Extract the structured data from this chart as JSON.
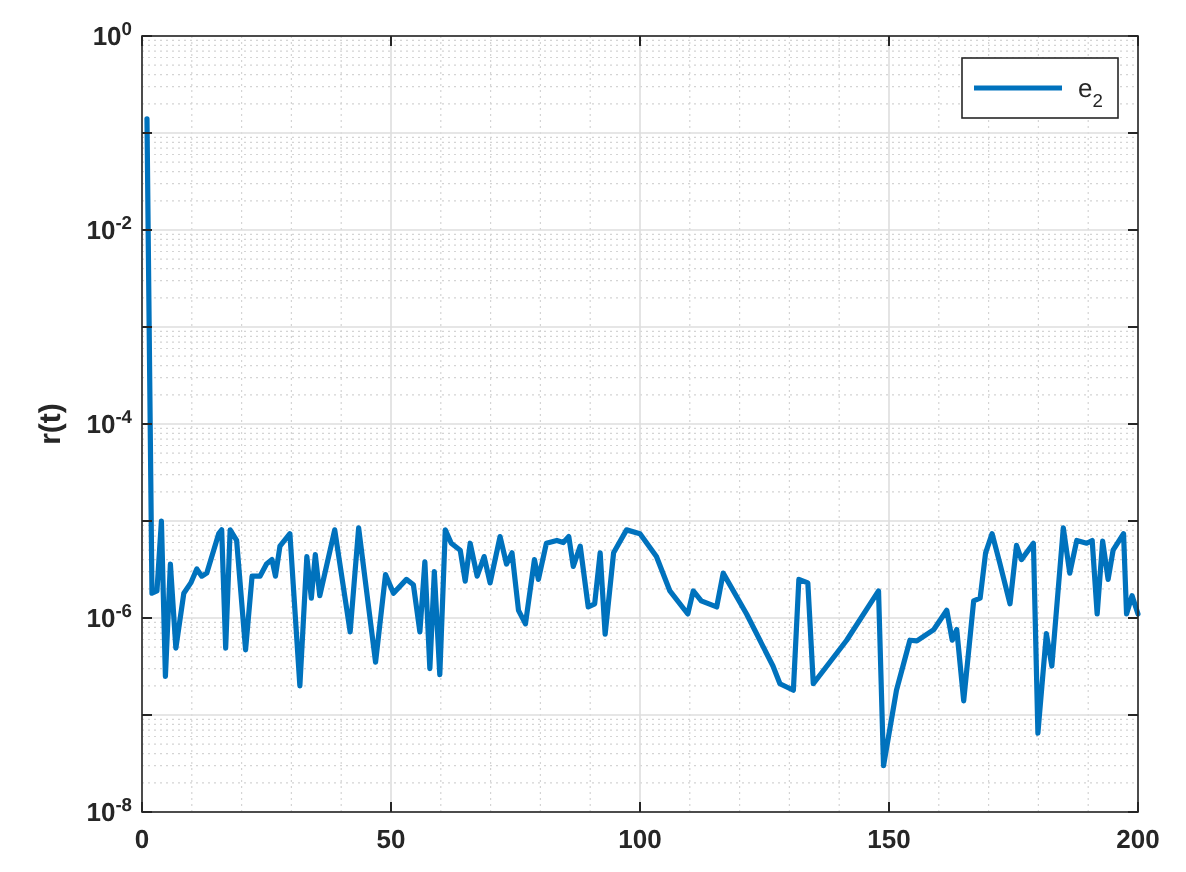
{
  "chart_data": {
    "type": "line",
    "ylabel": "r(t)",
    "log": "y",
    "grid": true,
    "legend": "top right",
    "line_style": "solid",
    "xlim": [
      0,
      200
    ],
    "xticks": [
      0,
      50,
      100,
      150,
      200
    ],
    "ylim": [
      1e-08,
      1
    ],
    "yticks": [
      {
        "value": 1e-08,
        "label": "10$^{-8}$"
      },
      {
        "value": 1e-07,
        "label": null
      },
      {
        "value": 1e-06,
        "label": "10$^{-6}$"
      },
      {
        "value": 1e-05,
        "label": null
      },
      {
        "value": 0.0001,
        "label": "10$^{-4}$"
      },
      {
        "value": 0.001,
        "label": null
      },
      {
        "value": 0.01,
        "label": "10$^{-2}$"
      },
      {
        "value": 0.1,
        "label": null
      },
      {
        "value": 1,
        "label": "10$^{0}$"
      }
    ],
    "series": [
      {
        "name": "e$_{2}$",
        "color": "#0072bd",
        "x": [
          1,
          2,
          3,
          3.9,
          4.7,
          5.7,
          6.8,
          8.4,
          9.8,
          11,
          12,
          13,
          15.4,
          16,
          16.8,
          17.7,
          19,
          20.8,
          22.1,
          23.7,
          25,
          26.1,
          26.8,
          27.7,
          29.7,
          31.7,
          33.1,
          34,
          34.8,
          35.7,
          38.7,
          41.8,
          43.5,
          46.9,
          48.9,
          50.5,
          53.1,
          54.5,
          55.8,
          56.8,
          57.8,
          58.7,
          59.8,
          60.9,
          62.1,
          63.9,
          64.9,
          65.9,
          67.3,
          68.7,
          69.9,
          71.9,
          73.2,
          74.3,
          75.6,
          77,
          78.8,
          79.6,
          81.2,
          83.3,
          84.6,
          85.7,
          86.6,
          88,
          89.6,
          90.9,
          92,
          93,
          94.7,
          97.3,
          100,
          103.3,
          106,
          109.6,
          110.7,
          112.3,
          115.4,
          116.7,
          121.4,
          126.7,
          128.1,
          130.8,
          131.9,
          133.7,
          134.8,
          141.5,
          147.9,
          148.9,
          151.5,
          154.2,
          155.6,
          159,
          161.6,
          162.7,
          163.6,
          165,
          167,
          168.3,
          169.4,
          170.7,
          172.3,
          174.3,
          175.6,
          176.6,
          179,
          179.9,
          181.6,
          182.7,
          185,
          186.3,
          187.7,
          189.7,
          190.8,
          191.8,
          192.9,
          194,
          195,
          197.1,
          197.7,
          198.8,
          200
        ],
        "values": [
          0.14,
          1.8e-06,
          1.9e-06,
          1e-05,
          2.5e-07,
          3.6e-06,
          4.9e-07,
          1.8e-06,
          2.3e-06,
          3.2e-06,
          2.7e-06,
          2.9e-06,
          7.4e-06,
          8.1e-06,
          4.9e-07,
          8.1e-06,
          6.3e-06,
          4.7e-07,
          2.7e-06,
          2.7e-06,
          3.6e-06,
          4e-06,
          2.7e-06,
          5.5e-06,
          7.4e-06,
          2e-07,
          4.3e-06,
          1.6e-06,
          4.5e-06,
          1.7e-06,
          8.1e-06,
          7.2e-07,
          8.5e-06,
          3.5e-07,
          2.8e-06,
          1.8e-06,
          2.5e-06,
          2.2e-06,
          7.2e-07,
          3.8e-06,
          3e-07,
          3e-06,
          2.6e-07,
          8.1e-06,
          5.9e-06,
          5e-06,
          2.4e-06,
          5.9e-06,
          2.7e-06,
          4.3e-06,
          2.3e-06,
          6.9e-06,
          3.6e-06,
          4.7e-06,
          1.2e-06,
          8.7e-07,
          4e-06,
          2.5e-06,
          5.9e-06,
          6.3e-06,
          6e-06,
          6.9e-06,
          3.4e-06,
          5.5e-06,
          1.3e-06,
          1.4e-06,
          4.7e-06,
          6.8e-07,
          4.7e-06,
          8.1e-06,
          7.4e-06,
          4.3e-06,
          1.9e-06,
          1.1e-06,
          1.9e-06,
          1.5e-06,
          1.3e-06,
          2.9e-06,
          1.1e-06,
          3.2e-07,
          2.1e-07,
          1.8e-07,
          2.5e-06,
          2.3e-06,
          2.1e-07,
          5.9e-07,
          1.9e-06,
          3e-08,
          1.8e-07,
          5.9e-07,
          5.8e-07,
          7.6e-07,
          1.2e-06,
          5.9e-07,
          7.6e-07,
          1.4e-07,
          1.5e-06,
          1.6e-06,
          4.7e-06,
          7.4e-06,
          3.6e-06,
          1.4e-06,
          5.6e-06,
          4e-06,
          5.9e-06,
          6.5e-08,
          6.9e-07,
          3.2e-07,
          8.5e-06,
          2.9e-06,
          6.3e-06,
          5.9e-06,
          6.3e-06,
          1.1e-06,
          6.2e-06,
          2.5e-06,
          5e-06,
          7.4e-06,
          1.1e-06,
          1.7e-06,
          1.1e-06
        ]
      }
    ]
  }
}
